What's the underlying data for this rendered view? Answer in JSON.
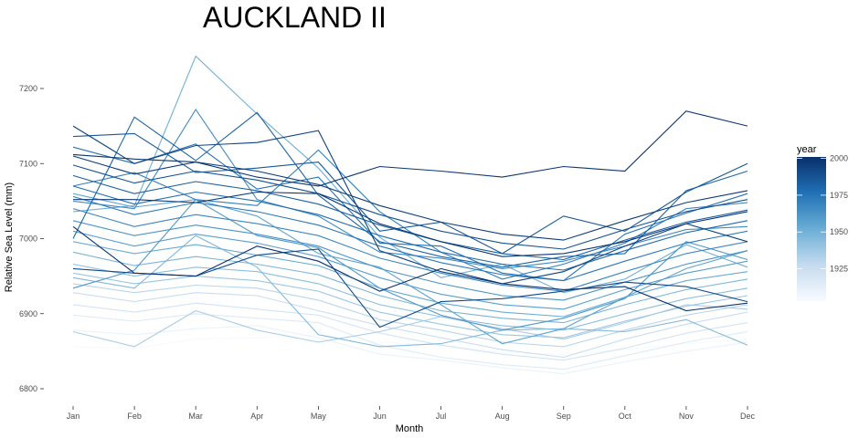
{
  "chart_data": {
    "type": "line",
    "title": "AUCKLAND II",
    "xlabel": "Month",
    "ylabel": "Relative Sea Level (mm)",
    "x": [
      "Jan",
      "Feb",
      "Mar",
      "Apr",
      "May",
      "Jun",
      "Jul",
      "Aug",
      "Sep",
      "Oct",
      "Nov",
      "Dec"
    ],
    "ylim": [
      6780,
      7230
    ],
    "y_ticks": [
      "6800",
      "6900",
      "7000",
      "7100",
      "7200"
    ],
    "grid": false,
    "legend": {
      "title": "year",
      "placement": "right",
      "ticks": [
        "1925",
        "1950",
        "1975",
        "2000"
      ],
      "range": [
        1903,
        2001
      ],
      "color_low": "#f7fbff",
      "color_high": "#08306b"
    },
    "series": [
      {
        "year": 1904,
        "values": [
          6856,
          6854,
          6866,
          6868,
          6872,
          6862,
          6858,
          6848,
          6846,
          6852,
          6860,
          6866
        ]
      },
      {
        "year": 1910,
        "values": [
          6878,
          6872,
          6880,
          6884,
          6868,
          6846,
          6838,
          6828,
          6820,
          6836,
          6850,
          6862
        ]
      },
      {
        "year": 1916,
        "values": [
          6898,
          6890,
          6900,
          6894,
          6888,
          6858,
          6842,
          6832,
          6826,
          6844,
          6862,
          6876
        ]
      },
      {
        "year": 1921,
        "values": [
          6912,
          6902,
          6914,
          6906,
          6898,
          6874,
          6858,
          6846,
          6838,
          6854,
          6874,
          6888
        ]
      },
      {
        "year": 1926,
        "values": [
          6928,
          6916,
          6928,
          6924,
          6904,
          6884,
          6868,
          6852,
          6842,
          6866,
          6886,
          6902
        ]
      },
      {
        "year": 1931,
        "values": [
          6940,
          6928,
          6938,
          6934,
          6918,
          6892,
          6878,
          6862,
          6856,
          6878,
          6898,
          6912
        ]
      },
      {
        "year": 1935,
        "values": [
          6876,
          6856,
          6904,
          6878,
          6862,
          6876,
          6896,
          6880,
          6866,
          6888,
          6912,
          6906
        ]
      },
      {
        "year": 1939,
        "values": [
          6954,
          6940,
          6950,
          6944,
          6930,
          6902,
          6886,
          6872,
          6868,
          6890,
          6910,
          6924
        ]
      },
      {
        "year": 1943,
        "values": [
          6966,
          6950,
          6962,
          6956,
          6940,
          6912,
          6896,
          6884,
          6878,
          6900,
          6920,
          6934
        ]
      },
      {
        "year": 1946,
        "values": [
          6948,
          6934,
          7004,
          6962,
          6872,
          6856,
          6860,
          6878,
          6880,
          6876,
          6892,
          6858
        ]
      },
      {
        "year": 1948,
        "values": [
          6982,
          6964,
          6976,
          6966,
          6952,
          6924,
          6904,
          6894,
          6888,
          6912,
          6932,
          6946
        ]
      },
      {
        "year": 1951,
        "values": [
          7036,
          7044,
          7243,
          7166,
          7094,
          7002,
          6948,
          6966,
          6928,
          6946,
          6992,
          6962
        ]
      },
      {
        "year": 1953,
        "values": [
          6996,
          6980,
          6992,
          6978,
          6964,
          6934,
          6914,
          6902,
          6896,
          6922,
          6944,
          6956
        ]
      },
      {
        "year": 1956,
        "values": [
          7060,
          7042,
          7052,
          7030,
          6980,
          6962,
          6912,
          6860,
          6880,
          6922,
          6960,
          6984
        ]
      },
      {
        "year": 1958,
        "values": [
          7010,
          6990,
          7006,
          6994,
          6976,
          6948,
          6926,
          6912,
          6906,
          6932,
          6954,
          6970
        ]
      },
      {
        "year": 1961,
        "values": [
          6934,
          6958,
          7052,
          7004,
          6988,
          6934,
          6898,
          6878,
          6894,
          6920,
          6996,
          6972
        ]
      },
      {
        "year": 1963,
        "values": [
          7024,
          7004,
          7018,
          7006,
          6990,
          6960,
          6940,
          6924,
          6918,
          6942,
          6966,
          6984
        ]
      },
      {
        "year": 1966,
        "values": [
          7050,
          7040,
          7172,
          7052,
          7030,
          6982,
          6974,
          6960,
          6970,
          6990,
          7012,
          7016
        ]
      },
      {
        "year": 1968,
        "values": [
          7040,
          7016,
          7032,
          7020,
          7004,
          6974,
          6954,
          6938,
          6930,
          6956,
          6980,
          6996
        ]
      },
      {
        "year": 1971,
        "values": [
          7070,
          7088,
          7052,
          7044,
          7118,
          7036,
          6982,
          6946,
          6966,
          6994,
          7040,
          7048
        ]
      },
      {
        "year": 1973,
        "values": [
          7056,
          7032,
          7048,
          7036,
          7018,
          6990,
          6968,
          6952,
          6944,
          6970,
          6994,
          7010
        ]
      },
      {
        "year": 1976,
        "values": [
          7122,
          7100,
          7126,
          7066,
          7082,
          6994,
          6990,
          6954,
          6944,
          7006,
          7034,
          7060
        ]
      },
      {
        "year": 1978,
        "values": [
          7070,
          7046,
          7062,
          7050,
          7032,
          7004,
          6982,
          6966,
          6958,
          6984,
          7008,
          7024
        ]
      },
      {
        "year": 1981,
        "values": [
          7000,
          7162,
          7104,
          7168,
          7058,
          6996,
          6976,
          6962,
          6976,
          6980,
          7064,
          7090
        ]
      },
      {
        "year": 1983,
        "values": [
          7084,
          7060,
          7076,
          7064,
          7046,
          7018,
          6996,
          6980,
          6972,
          6998,
          7022,
          7038
        ]
      },
      {
        "year": 1986,
        "values": [
          7136,
          7140,
          7088,
          7094,
          7102,
          7010,
          7022,
          6980,
          7030,
          7010,
          7062,
          7100
        ]
      },
      {
        "year": 1988,
        "values": [
          7098,
          7074,
          7090,
          7078,
          7060,
          7032,
          7010,
          6994,
          6986,
          7012,
          7036,
          7052
        ]
      },
      {
        "year": 1991,
        "values": [
          6960,
          6954,
          6950,
          6978,
          6986,
          6882,
          6916,
          6920,
          6930,
          6942,
          6936,
          6916
        ]
      },
      {
        "year": 1994,
        "values": [
          7150,
          7100,
          7124,
          7128,
          7144,
          6984,
          6956,
          6940,
          6956,
          6990,
          7020,
          6996
        ]
      },
      {
        "year": 1996,
        "values": [
          7110,
          7086,
          7102,
          7090,
          7072,
          7044,
          7022,
          7006,
          6998,
          7024,
          7048,
          7064
        ]
      },
      {
        "year": 1998,
        "values": [
          7052,
          7052,
          7048,
          7062,
          7060,
          7020,
          6996,
          6976,
          6980,
          6996,
          7020,
          7036
        ]
      },
      {
        "year": 1999,
        "values": [
          7112,
          7106,
          7102,
          7082,
          7070,
          7096,
          7090,
          7082,
          7096,
          7090,
          7170,
          7150
        ]
      },
      {
        "year": 2000,
        "values": [
          7016,
          6954,
          6950,
          6990,
          6970,
          6930,
          6960,
          6940,
          6932,
          6936,
          6904,
          6914
        ]
      }
    ]
  }
}
